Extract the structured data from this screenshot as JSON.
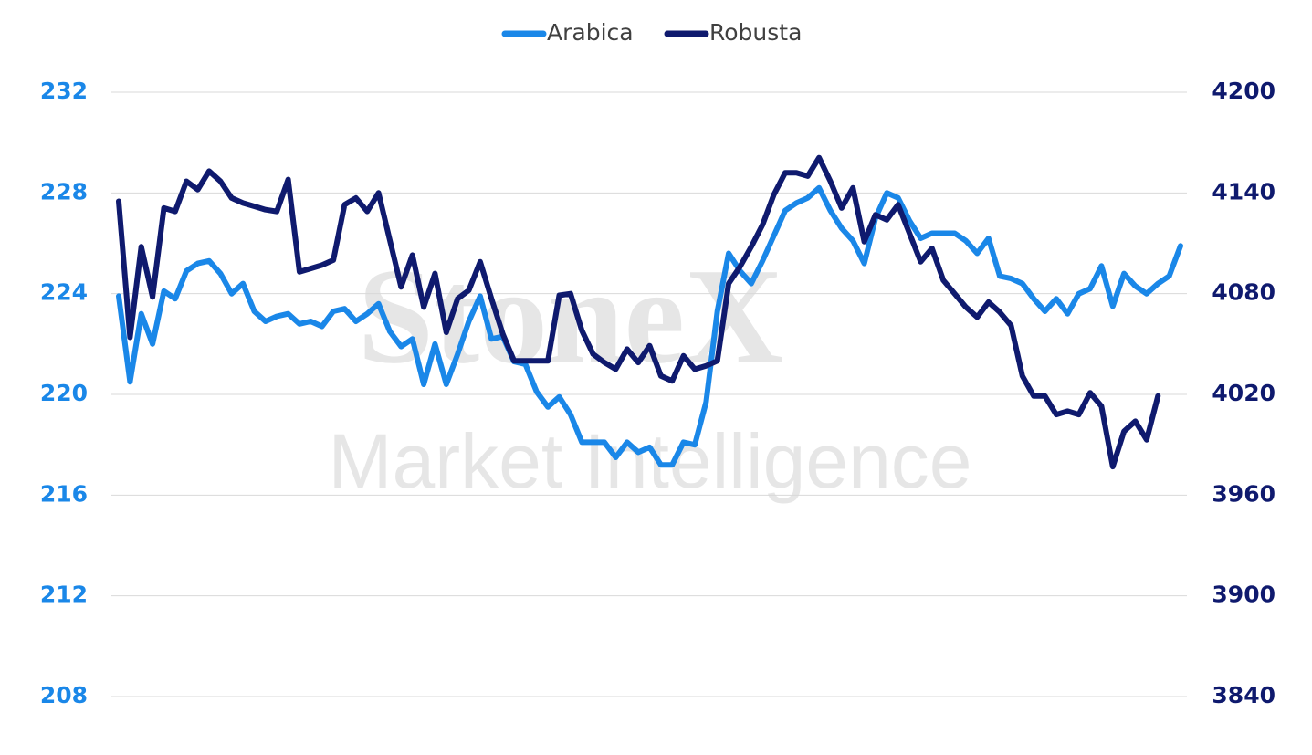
{
  "chart_data": {
    "type": "line",
    "watermark": "StoneX",
    "watermark_subtitle": "Market Intelligence",
    "categories": [
      null,
      null,
      null,
      null,
      null,
      null,
      null,
      null,
      null,
      null,
      null,
      null,
      null,
      null,
      null,
      null,
      null,
      null,
      null,
      null,
      null,
      null,
      null,
      null,
      null,
      null,
      null,
      null,
      null,
      null,
      null,
      null,
      null,
      null,
      null,
      null,
      null,
      null,
      null,
      null,
      null,
      null,
      null,
      null,
      null,
      null,
      null,
      null,
      null,
      null,
      null,
      null,
      null,
      null,
      null,
      null,
      null,
      null,
      null,
      null,
      null,
      null,
      null,
      null,
      null,
      null,
      null,
      null,
      null,
      null,
      null,
      null,
      null,
      null,
      null,
      null,
      null,
      null,
      null,
      null,
      null,
      null,
      null,
      null,
      null,
      null,
      null,
      null,
      null,
      null,
      null,
      null,
      null,
      null,
      null
    ],
    "series": [
      {
        "name": "Arabica",
        "color": "#1a87e8",
        "axis": "y",
        "values": [
          223.9,
          220.5,
          223.2,
          222.0,
          224.1,
          223.8,
          224.9,
          225.2,
          225.3,
          224.8,
          224.0,
          224.4,
          223.3,
          222.9,
          223.1,
          223.2,
          222.8,
          222.9,
          222.7,
          223.3,
          223.4,
          222.9,
          223.2,
          223.6,
          222.5,
          221.9,
          222.2,
          220.4,
          222.0,
          220.4,
          221.6,
          222.9,
          223.9,
          222.2,
          222.3,
          221.3,
          221.2,
          220.1,
          219.5,
          219.9,
          219.2,
          218.1,
          218.1,
          218.1,
          217.5,
          218.1,
          217.7,
          217.9,
          217.2,
          217.2,
          218.1,
          218.0,
          219.7,
          223.3,
          225.6,
          224.9,
          224.4,
          225.3,
          226.3,
          227.3,
          227.6,
          227.8,
          228.2,
          227.3,
          226.6,
          226.1,
          225.2,
          227.0,
          228.0,
          227.8,
          226.9,
          226.2,
          226.4,
          226.4,
          226.4,
          226.1,
          225.6,
          226.2,
          224.7,
          224.6,
          224.4,
          223.8,
          223.3,
          223.8,
          223.2,
          224.0,
          224.2,
          225.1,
          223.5,
          224.8,
          224.3,
          224.0,
          224.4,
          224.7,
          225.9
        ]
      },
      {
        "name": "Robusta",
        "color": "#0f1a6e",
        "axis": "y2",
        "values": [
          4135,
          4054,
          4108,
          4078,
          4131,
          4129,
          4147,
          4142,
          4153,
          4147,
          4137,
          4134,
          4132,
          4130,
          4129,
          4148,
          4093,
          4095,
          4097,
          4100,
          4133,
          4137,
          4129,
          4140,
          4112,
          4084,
          4103,
          4072,
          4092,
          4057,
          4077,
          4082,
          4099,
          4077,
          4056,
          4040,
          4040,
          4040,
          4040,
          4079,
          4080,
          4058,
          4044,
          4039,
          4035,
          4047,
          4039,
          4049,
          4031,
          4028,
          4043,
          4035,
          4037,
          4040,
          4086,
          4096,
          4108,
          4121,
          4139,
          4152,
          4152,
          4150,
          4161,
          4147,
          4131,
          4143,
          4111,
          4127,
          4124,
          4133,
          4116,
          4099,
          4107,
          4088,
          4080,
          4072,
          4066,
          4075,
          4069,
          4061,
          4031,
          4019,
          4019,
          4008,
          4010,
          4008,
          4021,
          4013,
          3977,
          3998,
          4004,
          3993,
          4019,
          null,
          null
        ]
      }
    ],
    "ylim": [
      208,
      232
    ],
    "yticks": [
      208,
      212,
      216,
      220,
      224,
      228,
      232
    ],
    "y2lim": [
      3840,
      4200
    ],
    "y2ticks": [
      3840,
      3900,
      3960,
      4020,
      4080,
      4140,
      4200
    ],
    "grid": true,
    "legend": "top"
  }
}
